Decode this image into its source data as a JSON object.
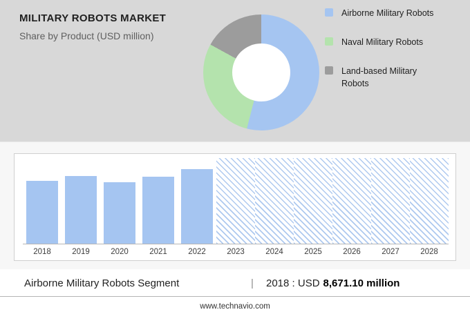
{
  "header": {
    "title": "Military Robots Market",
    "subtitle": "Share by Product (USD million)"
  },
  "legend": [
    {
      "label": "Airborne Military Robots",
      "color": "#a5c5f1"
    },
    {
      "label": "Naval Military Robots",
      "color": "#b4e3ad"
    },
    {
      "label": "Land-based Military Robots",
      "color": "#9c9c9c"
    }
  ],
  "chart_data": [
    {
      "type": "pie",
      "subtype": "donut",
      "labels": [
        "Airborne Military Robots",
        "Naval Military Robots",
        "Land-based Military Robots"
      ],
      "values": [
        54,
        29,
        17
      ],
      "colors": [
        "#a5c5f1",
        "#b4e3ad",
        "#9c9c9c"
      ],
      "legend_position": "right",
      "title": "Share by Product (USD million)"
    },
    {
      "type": "bar",
      "categories": [
        "2018",
        "2019",
        "2020",
        "2021",
        "2022",
        "2023",
        "2024",
        "2025",
        "2026",
        "2027",
        "2028"
      ],
      "values": [
        73,
        79,
        72,
        78,
        87,
        null,
        null,
        null,
        null,
        null,
        null
      ],
      "forecast_categories": [
        "2023",
        "2024",
        "2025",
        "2026",
        "2027",
        "2028"
      ],
      "bar_color": "#a5c5f1",
      "forecast_hatch_color": "#aec9ef",
      "ylim": [
        0,
        100
      ],
      "grid": false,
      "xlabel": "",
      "ylabel": ""
    }
  ],
  "footer": {
    "segment_label": "Airborne Military Robots Segment",
    "separator": "|",
    "stat_prefix": "2018 : USD",
    "stat_value": "8,671.10 million",
    "website": "www.technavio.com"
  }
}
